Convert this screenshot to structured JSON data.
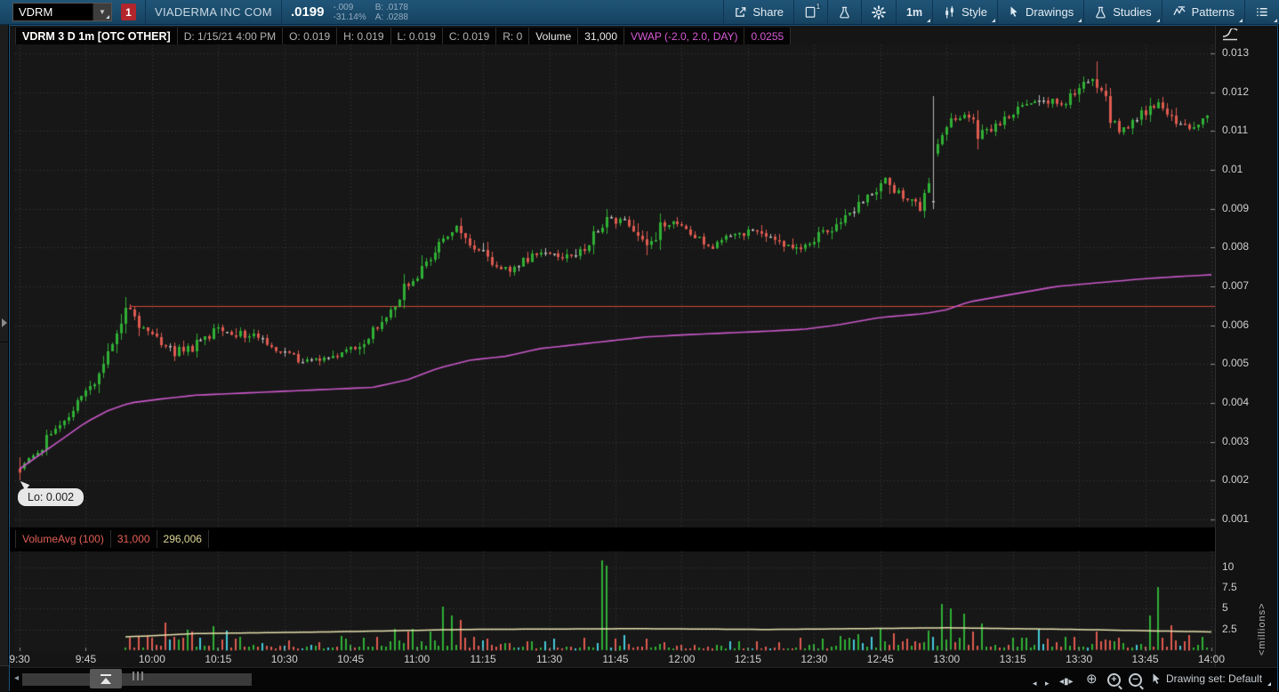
{
  "toolbar": {
    "symbol": "VDRM",
    "badge": "1",
    "company": "VIADERMA INC COM",
    "last": ".0199",
    "change": "-.009",
    "change_pct": "-31.14%",
    "bid": "B: .0178",
    "ask": "A: .0288",
    "share_label": "Share",
    "timeframe": "1m",
    "style_label": "Style",
    "drawings_label": "Drawings",
    "studies_label": "Studies",
    "patterns_label": "Patterns"
  },
  "chart_header": {
    "title": "VDRM 3 D 1m [OTC OTHER]",
    "datetime": "D: 1/15/21 4:00 PM",
    "open": "O: 0.019",
    "high": "H: 0.019",
    "low": "L: 0.019",
    "close": "C: 0.019",
    "r": "R: 0",
    "volume_label": "Volume",
    "volume_value": "31,000",
    "vwap_label": "VWAP (-2.0, 2.0, DAY)",
    "vwap_value": "0.0255"
  },
  "volume_header": {
    "label": "VolumeAvg (100)",
    "current": "31,000",
    "average": "296,006"
  },
  "low_label": "Lo: 0.002",
  "bottom_bar": {
    "drawing_set": "Drawing set: Default"
  },
  "colors": {
    "up": "#30b035",
    "down": "#de5a50",
    "neutral": "#b8b8b8",
    "cyan": "#45c8d8",
    "vwap": "#c958c9",
    "hline": "#d0473c",
    "vol_avg": "#e8e2ae",
    "grid": "#3c3c3c",
    "axis_tick": "#8a8a8a",
    "pane_bg": "#171717"
  },
  "chart_data": {
    "type": "candlestick",
    "title": "VDRM 3 D 1m [OTC OTHER]",
    "interval_minutes": 1,
    "minutes_total": 270,
    "session_start": "9:30",
    "session_end": "14:00",
    "ylim": [
      0.0005,
      0.0133
    ],
    "session_low": 0.002,
    "session_high": 0.0128,
    "hline_level": 0.0065,
    "y_ticks": [
      "0.013",
      "0.012",
      "0.011",
      "0.01",
      "0.009",
      "0.008",
      "0.007",
      "0.006",
      "0.005",
      "0.004",
      "0.003",
      "0.002",
      "0.001"
    ],
    "x_ticks": [
      "9:30",
      "9:45",
      "10:00",
      "10:15",
      "10:30",
      "10:45",
      "11:00",
      "11:15",
      "11:30",
      "11:45",
      "12:00",
      "12:15",
      "12:30",
      "12:45",
      "13:00",
      "13:15",
      "13:30",
      "13:45",
      "14:00"
    ],
    "volume_ticks": [
      "10",
      "7.5",
      "5",
      "2.5"
    ],
    "volume_unit": "<millions>",
    "price_waypoints": [
      [
        0,
        0.0023
      ],
      [
        5,
        0.0028
      ],
      [
        10,
        0.0034
      ],
      [
        15,
        0.0041
      ],
      [
        20,
        0.005
      ],
      [
        25,
        0.0065
      ],
      [
        28,
        0.006
      ],
      [
        32,
        0.0057
      ],
      [
        36,
        0.0053
      ],
      [
        40,
        0.0054
      ],
      [
        45,
        0.0058
      ],
      [
        50,
        0.0058
      ],
      [
        55,
        0.0057
      ],
      [
        58,
        0.0054
      ],
      [
        62,
        0.0052
      ],
      [
        66,
        0.0051
      ],
      [
        70,
        0.00515
      ],
      [
        75,
        0.0053
      ],
      [
        80,
        0.0057
      ],
      [
        84,
        0.0062
      ],
      [
        88,
        0.0069
      ],
      [
        90,
        0.0072
      ],
      [
        93,
        0.0076
      ],
      [
        96,
        0.0081
      ],
      [
        100,
        0.0085
      ],
      [
        104,
        0.008
      ],
      [
        108,
        0.0076
      ],
      [
        112,
        0.0074
      ],
      [
        116,
        0.0077
      ],
      [
        120,
        0.0079
      ],
      [
        124,
        0.0077
      ],
      [
        128,
        0.0079
      ],
      [
        132,
        0.0084
      ],
      [
        135,
        0.0088
      ],
      [
        139,
        0.0085
      ],
      [
        143,
        0.008
      ],
      [
        147,
        0.0086
      ],
      [
        150,
        0.0086
      ],
      [
        154,
        0.0083
      ],
      [
        158,
        0.008
      ],
      [
        162,
        0.0083
      ],
      [
        166,
        0.0084
      ],
      [
        170,
        0.0083
      ],
      [
        174,
        0.008
      ],
      [
        178,
        0.0079
      ],
      [
        182,
        0.0083
      ],
      [
        186,
        0.0086
      ],
      [
        190,
        0.009
      ],
      [
        194,
        0.0094
      ],
      [
        197,
        0.0097
      ],
      [
        201,
        0.0093
      ],
      [
        205,
        0.009
      ],
      [
        209,
        0.0106
      ],
      [
        212,
        0.0112
      ],
      [
        215,
        0.0114
      ],
      [
        218,
        0.011
      ],
      [
        222,
        0.0111
      ],
      [
        226,
        0.0115
      ],
      [
        230,
        0.0117
      ],
      [
        234,
        0.0118
      ],
      [
        238,
        0.0117
      ],
      [
        241,
        0.0121
      ],
      [
        244,
        0.0124
      ],
      [
        247,
        0.0117
      ],
      [
        250,
        0.011
      ],
      [
        253,
        0.0112
      ],
      [
        256,
        0.0115
      ],
      [
        259,
        0.0117
      ],
      [
        262,
        0.0113
      ],
      [
        265,
        0.0111
      ],
      [
        268,
        0.0112
      ],
      [
        270,
        0.0114
      ]
    ],
    "vwap_waypoints": [
      [
        0,
        0.0023
      ],
      [
        5,
        0.0027
      ],
      [
        10,
        0.0031
      ],
      [
        15,
        0.0035
      ],
      [
        20,
        0.0038
      ],
      [
        25,
        0.004
      ],
      [
        32,
        0.0041
      ],
      [
        40,
        0.0042
      ],
      [
        50,
        0.00425
      ],
      [
        60,
        0.0043
      ],
      [
        70,
        0.00435
      ],
      [
        80,
        0.0044
      ],
      [
        88,
        0.0046
      ],
      [
        95,
        0.0049
      ],
      [
        102,
        0.0051
      ],
      [
        110,
        0.0052
      ],
      [
        118,
        0.0054
      ],
      [
        126,
        0.0055
      ],
      [
        134,
        0.0056
      ],
      [
        142,
        0.0057
      ],
      [
        150,
        0.00575
      ],
      [
        160,
        0.0058
      ],
      [
        170,
        0.00585
      ],
      [
        178,
        0.0059
      ],
      [
        185,
        0.006
      ],
      [
        195,
        0.0062
      ],
      [
        205,
        0.0063
      ],
      [
        210,
        0.0064
      ],
      [
        215,
        0.0066
      ],
      [
        225,
        0.0068
      ],
      [
        235,
        0.007
      ],
      [
        245,
        0.0071
      ],
      [
        255,
        0.0072
      ],
      [
        262,
        0.00725
      ],
      [
        270,
        0.0073
      ]
    ],
    "long_wick": {
      "minute": 207,
      "high": 0.0119
    },
    "volume_start_minute": 24,
    "volume_profile": [
      [
        24,
        0.9
      ],
      [
        33,
        1.6
      ],
      [
        44,
        1.5
      ],
      [
        60,
        0.7
      ],
      [
        83,
        1.4
      ],
      [
        96,
        1.8
      ],
      [
        110,
        0.8
      ],
      [
        125,
        0.9
      ],
      [
        132,
        1.2
      ],
      [
        150,
        0.8
      ],
      [
        170,
        0.7
      ],
      [
        185,
        1.1
      ],
      [
        200,
        1.3
      ],
      [
        210,
        1.6
      ],
      [
        225,
        1.1
      ],
      [
        240,
        1.0
      ],
      [
        255,
        1.1
      ],
      [
        262,
        1.3
      ],
      [
        270,
        1.0
      ]
    ],
    "volume_spikes": [
      [
        33,
        3.3
      ],
      [
        44,
        2.9
      ],
      [
        47,
        2.4
      ],
      [
        85,
        2.6
      ],
      [
        96,
        5.3
      ],
      [
        98,
        4.2
      ],
      [
        100,
        3.6
      ],
      [
        132,
        10.8
      ],
      [
        133,
        10.2
      ],
      [
        195,
        2.7
      ],
      [
        209,
        5.6
      ],
      [
        211,
        5.0
      ],
      [
        214,
        4.4
      ],
      [
        218,
        3.2
      ],
      [
        231,
        2.6
      ],
      [
        244,
        2.2
      ],
      [
        256,
        4.2
      ],
      [
        258,
        7.6
      ],
      [
        261,
        3.0
      ]
    ],
    "volume_avg_waypoints": [
      [
        24,
        1.6
      ],
      [
        40,
        2.0
      ],
      [
        70,
        2.2
      ],
      [
        100,
        2.5
      ],
      [
        140,
        2.6
      ],
      [
        170,
        2.5
      ],
      [
        210,
        2.7
      ],
      [
        240,
        2.5
      ],
      [
        270,
        2.2
      ]
    ]
  }
}
